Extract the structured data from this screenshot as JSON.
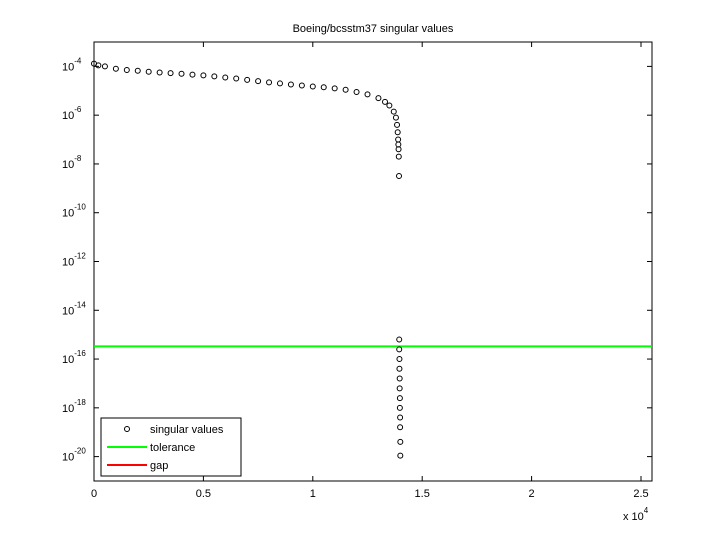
{
  "chart_data": {
    "type": "scatter",
    "title": "Boeing/bcsstm37 singular values",
    "log_y": true,
    "xlim": [
      0,
      2.5503
    ],
    "ylim": [
      1e-21,
      0.001
    ],
    "xticks": [
      0,
      0.5,
      1,
      1.5,
      2,
      2.5
    ],
    "x_multiplier": {
      "label": "x 10",
      "superscript": "4"
    },
    "yticks": [
      {
        "value": 1e-20,
        "label": "10",
        "superscript": "-20"
      },
      {
        "value": 1e-18,
        "label": "10",
        "superscript": "-18"
      },
      {
        "value": 1e-16,
        "label": "10",
        "superscript": "-16"
      },
      {
        "value": 1e-14,
        "label": "10",
        "superscript": "-14"
      },
      {
        "value": 1e-12,
        "label": "10",
        "superscript": "-12"
      },
      {
        "value": 1e-10,
        "label": "10",
        "superscript": "-10"
      },
      {
        "value": 1e-08,
        "label": "10",
        "superscript": "-8"
      },
      {
        "value": 1e-06,
        "label": "10",
        "superscript": "-6"
      },
      {
        "value": 0.0001,
        "label": "10",
        "superscript": "-4"
      }
    ],
    "series": [
      {
        "name": "singular values",
        "color": "#000000",
        "x": [
          0,
          0.02,
          0.05,
          0.1,
          0.15,
          0.2,
          0.25,
          0.3,
          0.35,
          0.4,
          0.45,
          0.5,
          0.55,
          0.6,
          0.65,
          0.7,
          0.75,
          0.8,
          0.85,
          0.9,
          0.95,
          1.0,
          1.05,
          1.1,
          1.15,
          1.2,
          1.25,
          1.3,
          1.33,
          1.35,
          1.37,
          1.38,
          1.385,
          1.388,
          1.39,
          1.391,
          1.392,
          1.393,
          1.394,
          1.395,
          1.395,
          1.396,
          1.396,
          1.397,
          1.397,
          1.398,
          1.398,
          1.399,
          1.399,
          1.4,
          1.4
        ],
        "values": [
          0.00013,
          0.00011,
          0.0001,
          8e-05,
          7.1e-05,
          6.6e-05,
          6e-05,
          5.6e-05,
          5.3e-05,
          5e-05,
          4.6e-05,
          4.3e-05,
          3.9e-05,
          3.5e-05,
          3.2e-05,
          2.8e-05,
          2.5e-05,
          2.2e-05,
          2e-05,
          1.8e-05,
          1.65e-05,
          1.5e-05,
          1.4e-05,
          1.26e-05,
          1.1e-05,
          8.9e-06,
          7.1e-06,
          5e-06,
          3.5e-06,
          2.5e-06,
          1.4e-06,
          7.9e-07,
          4e-07,
          2e-07,
          1e-07,
          6.3e-08,
          4e-08,
          2e-08,
          3.2e-09,
          6.3e-16,
          2.5e-16,
          1e-16,
          4e-17,
          1.6e-17,
          6.3e-18,
          2.5e-18,
          1e-18,
          4e-19,
          1.6e-19,
          4e-20,
          1.1e-20
        ]
      }
    ],
    "lines": [
      {
        "name": "tolerance",
        "color": "#00ff00",
        "value": 3.3e-16
      },
      {
        "name": "gap",
        "color": "#ff0000",
        "value": null
      }
    ],
    "legend": "lower left"
  }
}
